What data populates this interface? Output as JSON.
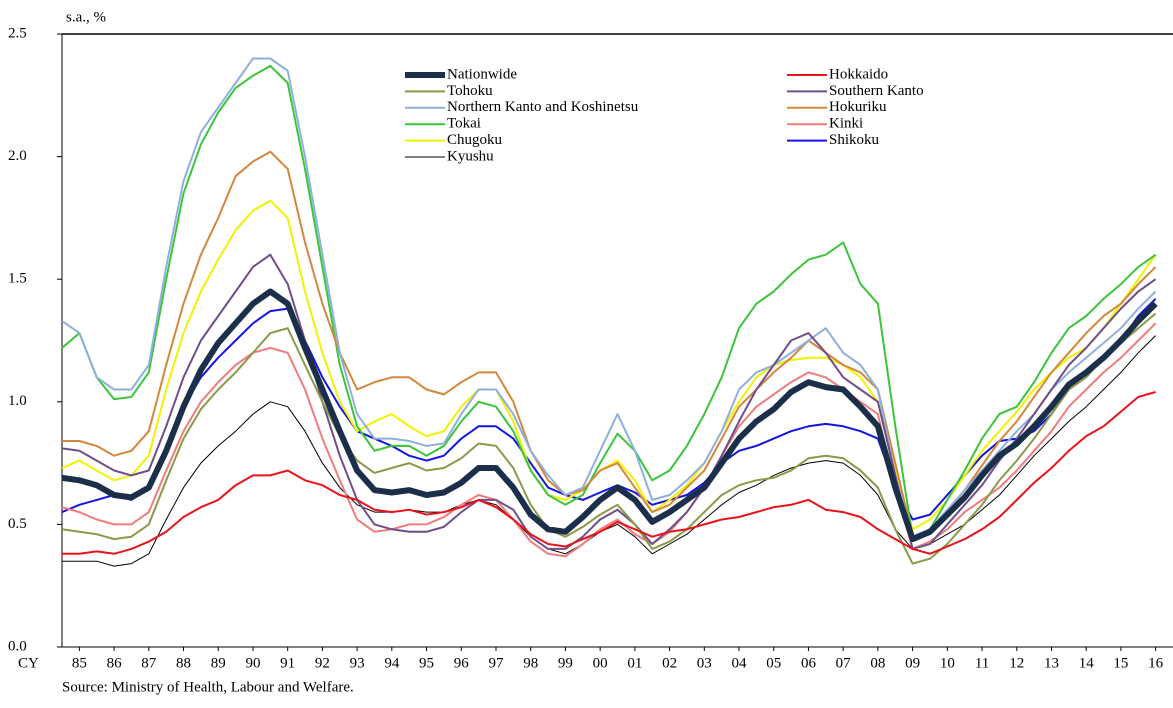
{
  "chart_data": {
    "type": "line",
    "y_label": "s.a., %",
    "x_label": "CY",
    "source": "Source: Ministry of Health, Labour and Welfare.",
    "xlim": [
      1985,
      2017
    ],
    "ylim": [
      0,
      2.5
    ],
    "yticks": [
      {
        "value": 0,
        "label": "0.0"
      },
      0.5,
      {
        "value": 1,
        "label": "1.0"
      },
      1.5,
      {
        "value": 2,
        "label": "2.0"
      },
      2.5
    ],
    "xticks": [
      {
        "value": 1985.5,
        "label": "85"
      },
      {
        "value": 1986.5,
        "label": "86"
      },
      {
        "value": 1987.5,
        "label": "87"
      },
      {
        "value": 1988.5,
        "label": "88"
      },
      {
        "value": 1989.5,
        "label": "89"
      },
      {
        "value": 1990.5,
        "label": "90"
      },
      {
        "value": 1991.5,
        "label": "91"
      },
      {
        "value": 1992.5,
        "label": "92"
      },
      {
        "value": 1993.5,
        "label": "93"
      },
      {
        "value": 1994.5,
        "label": "94"
      },
      {
        "value": 1995.5,
        "label": "95"
      },
      {
        "value": 1996.5,
        "label": "96"
      },
      {
        "value": 1997.5,
        "label": "97"
      },
      {
        "value": 1998.5,
        "label": "98"
      },
      {
        "value": 1999.5,
        "label": "99"
      },
      {
        "value": 2000.5,
        "label": "00"
      },
      {
        "value": 2001.5,
        "label": "01"
      },
      {
        "value": 2002.5,
        "label": "02"
      },
      {
        "value": 2003.5,
        "label": "03"
      },
      {
        "value": 2004.5,
        "label": "04"
      },
      {
        "value": 2005.5,
        "label": "05"
      },
      {
        "value": 2006.5,
        "label": "06"
      },
      {
        "value": 2007.5,
        "label": "07"
      },
      {
        "value": 2008.5,
        "label": "08"
      },
      {
        "value": 2009.5,
        "label": "09"
      },
      {
        "value": 2010.5,
        "label": "10"
      },
      {
        "value": 2011.5,
        "label": "11"
      },
      {
        "value": 2012.5,
        "label": "12"
      },
      {
        "value": 2013.5,
        "label": "13"
      },
      {
        "value": 2014.5,
        "label": "14"
      },
      {
        "value": 2015.5,
        "label": "15"
      },
      {
        "value": 2016.5,
        "label": "16"
      }
    ],
    "x": [
      1985,
      1985.5,
      1986,
      1986.5,
      1987,
      1987.5,
      1988,
      1988.5,
      1989,
      1989.5,
      1990,
      1990.5,
      1991,
      1991.5,
      1992,
      1992.5,
      1993,
      1993.5,
      1994,
      1994.5,
      1995,
      1995.5,
      1996,
      1996.5,
      1997,
      1997.5,
      1998,
      1998.5,
      1999,
      1999.5,
      2000,
      2000.5,
      2001,
      2001.5,
      2002,
      2002.5,
      2003,
      2003.5,
      2004,
      2004.5,
      2005,
      2005.5,
      2006,
      2006.5,
      2007,
      2007.5,
      2008,
      2008.5,
      2009,
      2009.5,
      2010,
      2010.5,
      2011,
      2011.5,
      2012,
      2012.5,
      2013,
      2013.5,
      2014,
      2014.5,
      2015,
      2015.5,
      2016,
      2016.5
    ],
    "series": [
      {
        "name": "Nationwide",
        "color": "#1c2f4a",
        "width": 6,
        "values": [
          0.69,
          0.68,
          0.66,
          0.62,
          0.61,
          0.65,
          0.8,
          0.98,
          1.13,
          1.24,
          1.32,
          1.4,
          1.45,
          1.4,
          1.22,
          1.05,
          0.88,
          0.72,
          0.64,
          0.63,
          0.64,
          0.62,
          0.63,
          0.67,
          0.73,
          0.73,
          0.65,
          0.54,
          0.48,
          0.47,
          0.53,
          0.6,
          0.65,
          0.6,
          0.51,
          0.55,
          0.6,
          0.65,
          0.75,
          0.85,
          0.92,
          0.97,
          1.04,
          1.08,
          1.06,
          1.05,
          0.98,
          0.9,
          0.65,
          0.44,
          0.47,
          0.54,
          0.61,
          0.7,
          0.78,
          0.83,
          0.9,
          0.98,
          1.07,
          1.12,
          1.18,
          1.25,
          1.33,
          1.4
        ]
      },
      {
        "name": "Hokkaido",
        "color": "#e8141b",
        "width": 2,
        "values": [
          0.38,
          0.38,
          0.39,
          0.38,
          0.4,
          0.43,
          0.47,
          0.53,
          0.57,
          0.6,
          0.66,
          0.7,
          0.7,
          0.72,
          0.68,
          0.66,
          0.62,
          0.6,
          0.56,
          0.55,
          0.56,
          0.54,
          0.55,
          0.57,
          0.6,
          0.57,
          0.52,
          0.46,
          0.42,
          0.41,
          0.44,
          0.47,
          0.51,
          0.48,
          0.45,
          0.47,
          0.48,
          0.5,
          0.52,
          0.53,
          0.55,
          0.57,
          0.58,
          0.6,
          0.56,
          0.55,
          0.53,
          0.48,
          0.44,
          0.4,
          0.38,
          0.41,
          0.44,
          0.48,
          0.53,
          0.6,
          0.67,
          0.73,
          0.8,
          0.86,
          0.9,
          0.96,
          1.02,
          1.04
        ]
      },
      {
        "name": "Tohoku",
        "color": "#8a9a48",
        "width": 2,
        "values": [
          0.48,
          0.47,
          0.46,
          0.44,
          0.45,
          0.5,
          0.68,
          0.85,
          0.97,
          1.05,
          1.12,
          1.2,
          1.28,
          1.3,
          1.15,
          1.0,
          0.86,
          0.76,
          0.71,
          0.73,
          0.75,
          0.72,
          0.73,
          0.77,
          0.83,
          0.82,
          0.73,
          0.58,
          0.48,
          0.45,
          0.49,
          0.54,
          0.58,
          0.5,
          0.4,
          0.43,
          0.48,
          0.55,
          0.62,
          0.66,
          0.68,
          0.69,
          0.72,
          0.77,
          0.78,
          0.77,
          0.72,
          0.65,
          0.48,
          0.34,
          0.36,
          0.42,
          0.5,
          0.58,
          0.68,
          0.76,
          0.85,
          0.95,
          1.05,
          1.1,
          1.18,
          1.24,
          1.3,
          1.36
        ]
      },
      {
        "name": "Southern Kanto",
        "color": "#6e4f8a",
        "width": 2,
        "values": [
          0.81,
          0.8,
          0.76,
          0.72,
          0.7,
          0.72,
          0.9,
          1.1,
          1.25,
          1.35,
          1.45,
          1.55,
          1.6,
          1.48,
          1.25,
          1.0,
          0.78,
          0.6,
          0.5,
          0.48,
          0.47,
          0.47,
          0.49,
          0.55,
          0.6,
          0.6,
          0.56,
          0.45,
          0.4,
          0.4,
          0.45,
          0.52,
          0.56,
          0.5,
          0.42,
          0.48,
          0.55,
          0.65,
          0.78,
          0.92,
          1.05,
          1.15,
          1.25,
          1.28,
          1.2,
          1.1,
          1.05,
          1.0,
          0.7,
          0.4,
          0.42,
          0.5,
          0.58,
          0.66,
          0.76,
          0.85,
          0.95,
          1.05,
          1.15,
          1.22,
          1.3,
          1.38,
          1.45,
          1.5
        ]
      },
      {
        "name": "Northern Kanto and Koshinetsu",
        "color": "#8fb0dc",
        "width": 2,
        "values": [
          1.33,
          1.28,
          1.1,
          1.05,
          1.05,
          1.15,
          1.55,
          1.9,
          2.1,
          2.2,
          2.3,
          2.4,
          2.4,
          2.35,
          2.0,
          1.6,
          1.2,
          0.95,
          0.85,
          0.85,
          0.84,
          0.82,
          0.83,
          0.95,
          1.05,
          1.05,
          0.95,
          0.8,
          0.7,
          0.62,
          0.65,
          0.8,
          0.95,
          0.8,
          0.6,
          0.62,
          0.68,
          0.75,
          0.88,
          1.05,
          1.12,
          1.15,
          1.2,
          1.25,
          1.3,
          1.2,
          1.15,
          1.05,
          0.7,
          0.45,
          0.48,
          0.56,
          0.64,
          0.72,
          0.8,
          0.88,
          0.95,
          1.05,
          1.12,
          1.18,
          1.24,
          1.3,
          1.38,
          1.45
        ]
      },
      {
        "name": "Hokuriku",
        "color": "#d4873c",
        "width": 2,
        "values": [
          0.84,
          0.84,
          0.82,
          0.78,
          0.8,
          0.88,
          1.15,
          1.4,
          1.6,
          1.75,
          1.92,
          1.98,
          2.02,
          1.95,
          1.65,
          1.4,
          1.2,
          1.05,
          1.08,
          1.1,
          1.1,
          1.05,
          1.03,
          1.08,
          1.12,
          1.12,
          1.0,
          0.8,
          0.68,
          0.62,
          0.64,
          0.72,
          0.75,
          0.65,
          0.55,
          0.58,
          0.65,
          0.72,
          0.85,
          0.98,
          1.05,
          1.12,
          1.18,
          1.25,
          1.2,
          1.15,
          1.12,
          1.05,
          0.75,
          0.45,
          0.47,
          0.55,
          0.64,
          0.74,
          0.84,
          0.92,
          1.02,
          1.12,
          1.2,
          1.28,
          1.35,
          1.4,
          1.48,
          1.55
        ]
      },
      {
        "name": "Tokai",
        "color": "#3cc43a",
        "width": 2,
        "values": [
          1.22,
          1.28,
          1.1,
          1.01,
          1.02,
          1.12,
          1.5,
          1.85,
          2.05,
          2.18,
          2.28,
          2.33,
          2.37,
          2.3,
          1.95,
          1.55,
          1.15,
          0.9,
          0.8,
          0.82,
          0.82,
          0.78,
          0.82,
          0.92,
          1.0,
          0.98,
          0.88,
          0.72,
          0.62,
          0.58,
          0.62,
          0.75,
          0.87,
          0.8,
          0.68,
          0.72,
          0.82,
          0.95,
          1.1,
          1.3,
          1.4,
          1.45,
          1.52,
          1.58,
          1.6,
          1.65,
          1.48,
          1.4,
          0.9,
          0.45,
          0.48,
          0.6,
          0.72,
          0.85,
          0.95,
          0.98,
          1.08,
          1.2,
          1.3,
          1.35,
          1.42,
          1.48,
          1.55,
          1.6
        ]
      },
      {
        "name": "Kinki",
        "color": "#f07c7c",
        "width": 2,
        "values": [
          0.57,
          0.55,
          0.52,
          0.5,
          0.5,
          0.55,
          0.72,
          0.88,
          1.0,
          1.08,
          1.15,
          1.2,
          1.22,
          1.2,
          1.05,
          0.85,
          0.68,
          0.52,
          0.47,
          0.48,
          0.5,
          0.5,
          0.53,
          0.58,
          0.62,
          0.6,
          0.52,
          0.43,
          0.38,
          0.37,
          0.42,
          0.48,
          0.52,
          0.46,
          0.42,
          0.47,
          0.55,
          0.65,
          0.78,
          0.9,
          0.98,
          1.03,
          1.08,
          1.12,
          1.1,
          1.05,
          1.0,
          0.95,
          0.65,
          0.4,
          0.43,
          0.48,
          0.55,
          0.6,
          0.65,
          0.72,
          0.8,
          0.88,
          0.98,
          1.05,
          1.12,
          1.18,
          1.25,
          1.32
        ]
      },
      {
        "name": "Chugoku",
        "color": "#f2f200",
        "width": 2,
        "values": [
          0.73,
          0.76,
          0.72,
          0.68,
          0.7,
          0.78,
          1.05,
          1.28,
          1.45,
          1.58,
          1.7,
          1.78,
          1.82,
          1.75,
          1.45,
          1.2,
          1.0,
          0.88,
          0.92,
          0.95,
          0.9,
          0.86,
          0.88,
          0.98,
          1.05,
          1.05,
          0.92,
          0.72,
          0.62,
          0.6,
          0.64,
          0.72,
          0.76,
          0.68,
          0.55,
          0.6,
          0.66,
          0.75,
          0.88,
          1.0,
          1.1,
          1.15,
          1.17,
          1.18,
          1.18,
          1.15,
          1.1,
          1.0,
          0.72,
          0.48,
          0.52,
          0.6,
          0.7,
          0.8,
          0.88,
          0.96,
          1.05,
          1.12,
          1.18,
          1.22,
          1.3,
          1.4,
          1.5,
          1.6
        ]
      },
      {
        "name": "Shikoku",
        "color": "#1515e0",
        "width": 2,
        "values": [
          0.55,
          0.58,
          0.6,
          0.62,
          0.6,
          0.65,
          0.82,
          0.98,
          1.1,
          1.18,
          1.25,
          1.32,
          1.37,
          1.38,
          1.25,
          1.1,
          0.98,
          0.88,
          0.85,
          0.82,
          0.78,
          0.76,
          0.78,
          0.85,
          0.9,
          0.9,
          0.85,
          0.75,
          0.65,
          0.62,
          0.6,
          0.63,
          0.66,
          0.63,
          0.58,
          0.6,
          0.62,
          0.67,
          0.75,
          0.8,
          0.82,
          0.85,
          0.88,
          0.9,
          0.91,
          0.9,
          0.88,
          0.85,
          0.65,
          0.52,
          0.54,
          0.62,
          0.7,
          0.78,
          0.84,
          0.85,
          0.88,
          0.95,
          1.05,
          1.12,
          1.18,
          1.25,
          1.35,
          1.42
        ]
      },
      {
        "name": "Kyushu",
        "color": "#000000",
        "width": 1,
        "values": [
          0.35,
          0.35,
          0.35,
          0.33,
          0.34,
          0.38,
          0.52,
          0.65,
          0.75,
          0.82,
          0.88,
          0.95,
          1.0,
          0.98,
          0.88,
          0.75,
          0.65,
          0.58,
          0.55,
          0.55,
          0.56,
          0.55,
          0.55,
          0.58,
          0.6,
          0.58,
          0.52,
          0.45,
          0.4,
          0.38,
          0.42,
          0.47,
          0.5,
          0.45,
          0.38,
          0.42,
          0.46,
          0.52,
          0.58,
          0.63,
          0.66,
          0.7,
          0.73,
          0.75,
          0.76,
          0.75,
          0.7,
          0.62,
          0.48,
          0.4,
          0.42,
          0.46,
          0.5,
          0.56,
          0.62,
          0.7,
          0.78,
          0.85,
          0.92,
          0.98,
          1.05,
          1.12,
          1.2,
          1.27
        ]
      }
    ]
  }
}
